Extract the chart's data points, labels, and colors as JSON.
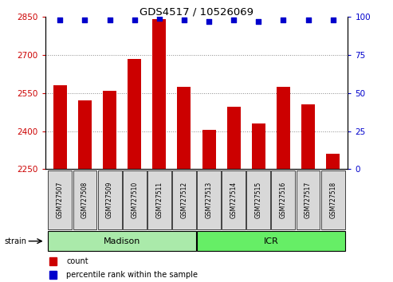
{
  "title": "GDS4517 / 10526069",
  "samples": [
    "GSM727507",
    "GSM727508",
    "GSM727509",
    "GSM727510",
    "GSM727511",
    "GSM727512",
    "GSM727513",
    "GSM727514",
    "GSM727515",
    "GSM727516",
    "GSM727517",
    "GSM727518"
  ],
  "counts": [
    2580,
    2520,
    2560,
    2685,
    2840,
    2575,
    2405,
    2495,
    2430,
    2575,
    2505,
    2310
  ],
  "percentiles": [
    98,
    98,
    98,
    98,
    99,
    98,
    97,
    98,
    97,
    98,
    98,
    98
  ],
  "bar_color": "#cc0000",
  "dot_color": "#0000cc",
  "ylim_left": [
    2250,
    2850
  ],
  "ylim_right": [
    0,
    100
  ],
  "yticks_left": [
    2250,
    2400,
    2550,
    2700,
    2850
  ],
  "yticks_right": [
    0,
    25,
    50,
    75,
    100
  ],
  "groups": [
    {
      "label": "Madison",
      "start": 0,
      "end": 6,
      "color": "#aaeaaa"
    },
    {
      "label": "ICR",
      "start": 6,
      "end": 12,
      "color": "#66ee66"
    }
  ],
  "strain_label": "strain",
  "legend_items": [
    {
      "label": "count",
      "color": "#cc0000"
    },
    {
      "label": "percentile rank within the sample",
      "color": "#0000cc"
    }
  ],
  "grid_color": "#888888",
  "background_color": "#ffffff",
  "tick_label_color_left": "#cc0000",
  "tick_label_color_right": "#0000cc",
  "box_color": "#d8d8d8",
  "bar_width": 0.55
}
